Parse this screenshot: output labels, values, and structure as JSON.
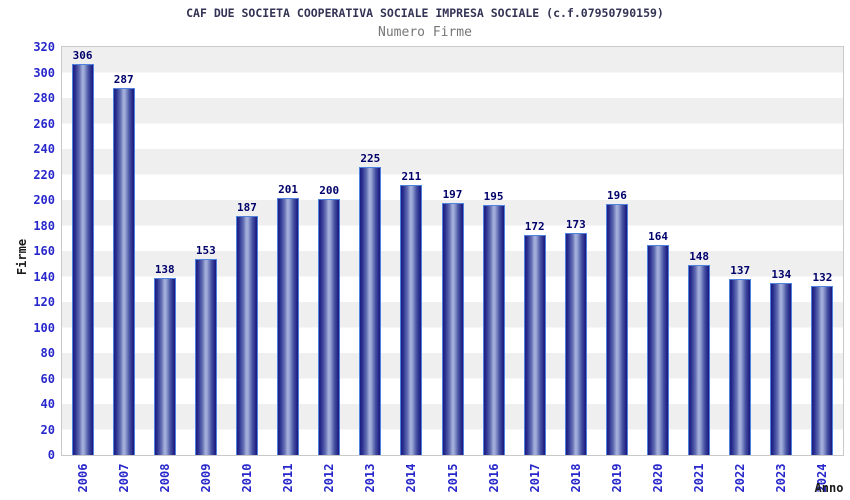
{
  "header": {
    "title": "CAF DUE SOCIETA COOPERATIVA SOCIALE IMPRESA SOCIALE (c.f.07950790159)",
    "subtitle": "Numero Firme"
  },
  "chart_data": {
    "type": "bar",
    "title": "CAF DUE SOCIETA COOPERATIVA SOCIALE IMPRESA SOCIALE (c.f.07950790159)",
    "subtitle": "Numero Firme",
    "xlabel": "Anno",
    "ylabel": "Firme",
    "categories": [
      "2006",
      "2007",
      "2008",
      "2009",
      "2010",
      "2011",
      "2012",
      "2013",
      "2014",
      "2015",
      "2016",
      "2017",
      "2018",
      "2019",
      "2020",
      "2021",
      "2022",
      "2023",
      "2024"
    ],
    "values": [
      306,
      287,
      138,
      153,
      187,
      201,
      200,
      225,
      211,
      197,
      195,
      172,
      173,
      196,
      164,
      148,
      137,
      134,
      132
    ],
    "ylim": [
      0,
      320
    ],
    "ytick_step": 20,
    "grid": "horizontal-bands-alternating",
    "legend": "none",
    "bar_labels_shown": true,
    "x_tick_rotation_degrees": -90
  },
  "colors": {
    "title": "#333355",
    "subtitle": "#777777",
    "axis_tick_label": "#2727cc",
    "bar_value_label": "#00006b",
    "axis_title": "#1a1a1a",
    "bar_edge": "#4e82de",
    "bar_dark": "#1d1d82",
    "bar_light": "#a6b0da",
    "band_gray": "#efefef",
    "band_white": "#ffffff",
    "plot_border": "#c9c9c9"
  }
}
